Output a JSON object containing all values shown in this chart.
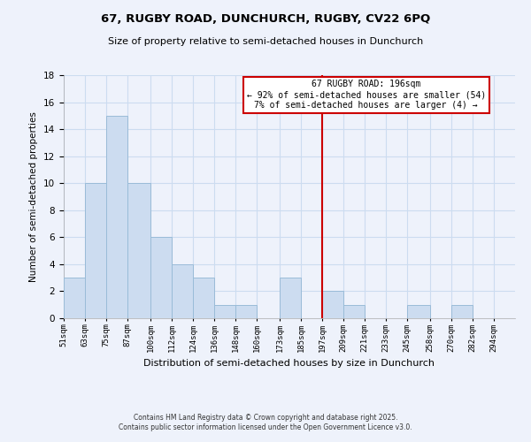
{
  "title_line1": "67, RUGBY ROAD, DUNCHURCH, RUGBY, CV22 6PQ",
  "title_line2": "Size of property relative to semi-detached houses in Dunchurch",
  "xlabel": "Distribution of semi-detached houses by size in Dunchurch",
  "ylabel": "Number of semi-detached properties",
  "bin_labels": [
    "51sqm",
    "63sqm",
    "75sqm",
    "87sqm",
    "100sqm",
    "112sqm",
    "124sqm",
    "136sqm",
    "148sqm",
    "160sqm",
    "173sqm",
    "185sqm",
    "197sqm",
    "209sqm",
    "221sqm",
    "233sqm",
    "245sqm",
    "258sqm",
    "270sqm",
    "282sqm",
    "294sqm"
  ],
  "bin_edges": [
    51,
    63,
    75,
    87,
    100,
    112,
    124,
    136,
    148,
    160,
    173,
    185,
    197,
    209,
    221,
    233,
    245,
    258,
    270,
    282,
    294,
    306
  ],
  "counts": [
    3,
    10,
    15,
    10,
    6,
    4,
    3,
    1,
    1,
    0,
    3,
    0,
    2,
    1,
    0,
    0,
    1,
    0,
    1,
    0,
    0
  ],
  "bar_color": "#ccdcf0",
  "bar_edge_color": "#9abcd8",
  "grid_color": "#ccdcf0",
  "vline_x": 197,
  "vline_color": "#cc0000",
  "annotation_title": "67 RUGBY ROAD: 196sqm",
  "annotation_line2": "← 92% of semi-detached houses are smaller (54)",
  "annotation_line3": "7% of semi-detached houses are larger (4) →",
  "annotation_box_facecolor": "#ffffff",
  "annotation_box_edgecolor": "#cc0000",
  "ylim": [
    0,
    18
  ],
  "yticks": [
    0,
    2,
    4,
    6,
    8,
    10,
    12,
    14,
    16,
    18
  ],
  "footer_line1": "Contains HM Land Registry data © Crown copyright and database right 2025.",
  "footer_line2": "Contains public sector information licensed under the Open Government Licence v3.0.",
  "background_color": "#eef2fb"
}
